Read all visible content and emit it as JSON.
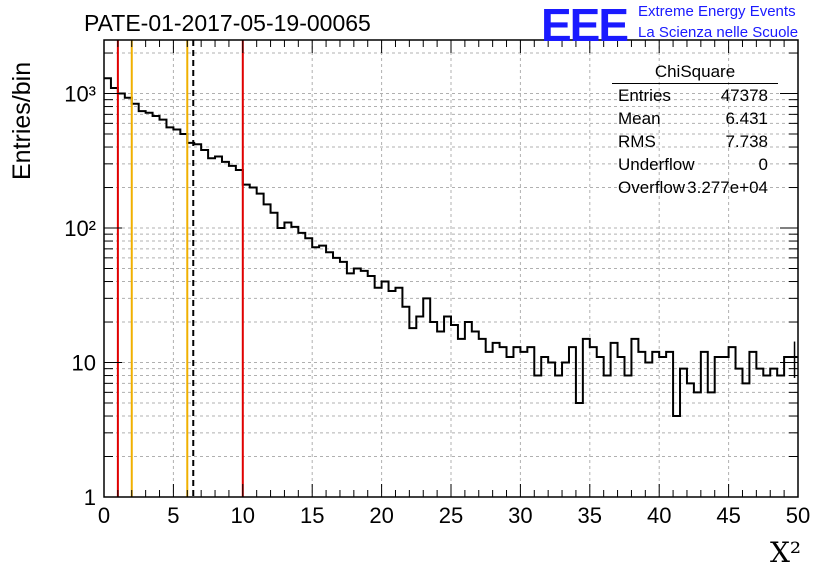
{
  "title": "PATE-01-2017-05-19-00065",
  "logo": "EEE",
  "org_line1": "Extreme Energy Events",
  "org_line2": "La Scienza nelle Scuole",
  "stats": {
    "title": "ChiSquare",
    "rows": [
      {
        "key": "Entries",
        "value": "47378"
      },
      {
        "key": "Mean",
        "value": "6.431"
      },
      {
        "key": "RMS",
        "value": "7.738"
      },
      {
        "key": "Underflow",
        "value": "0"
      },
      {
        "key": "Overflow",
        "value": "3.277e+04"
      }
    ]
  },
  "chart_data": {
    "type": "histogram",
    "title": "PATE-01-2017-05-19-00065",
    "xlabel": "X²",
    "ylabel": "Entries/bin",
    "xlim": [
      0,
      50
    ],
    "ylim": [
      1,
      2500
    ],
    "yscale": "log",
    "bin_width": 0.5,
    "x_ticks": [
      "0",
      "5",
      "10",
      "15",
      "20",
      "25",
      "30",
      "35",
      "40",
      "45",
      "50"
    ],
    "y_ticks": [
      "1",
      "10",
      "10²",
      "10³"
    ],
    "grid": true,
    "values": [
      1300,
      1100,
      1000,
      930,
      840,
      740,
      720,
      680,
      640,
      560,
      540,
      500,
      430,
      420,
      380,
      330,
      340,
      310,
      290,
      270,
      210,
      200,
      180,
      150,
      130,
      100,
      110,
      102,
      92,
      84,
      72,
      74,
      66,
      60,
      56,
      46,
      50,
      48,
      44,
      36,
      40,
      34,
      36,
      26,
      18,
      22,
      30,
      20,
      17,
      22,
      19,
      15,
      20,
      17,
      15,
      12,
      14,
      13,
      11,
      13,
      12,
      13,
      8,
      11,
      10,
      8,
      10,
      13,
      5,
      15,
      13,
      11,
      8,
      14,
      11,
      8,
      15,
      12,
      10,
      12,
      11,
      12,
      4,
      9,
      7,
      6,
      12,
      6,
      11,
      11,
      13,
      9,
      7,
      12,
      9,
      8,
      9,
      8,
      11,
      11
    ],
    "vertical_lines": [
      {
        "x": 1.0,
        "color": "#e00000",
        "style": "solid"
      },
      {
        "x": 2.0,
        "color": "#f0b000",
        "style": "solid"
      },
      {
        "x": 6.0,
        "color": "#f0b000",
        "style": "solid"
      },
      {
        "x": 6.431,
        "color": "#000000",
        "style": "dashed"
      },
      {
        "x": 10.0,
        "color": "#e00000",
        "style": "solid"
      }
    ]
  },
  "colors": {
    "logo": "#1a1aff",
    "histogram": "#000000",
    "grid": "#b0b0b0"
  }
}
